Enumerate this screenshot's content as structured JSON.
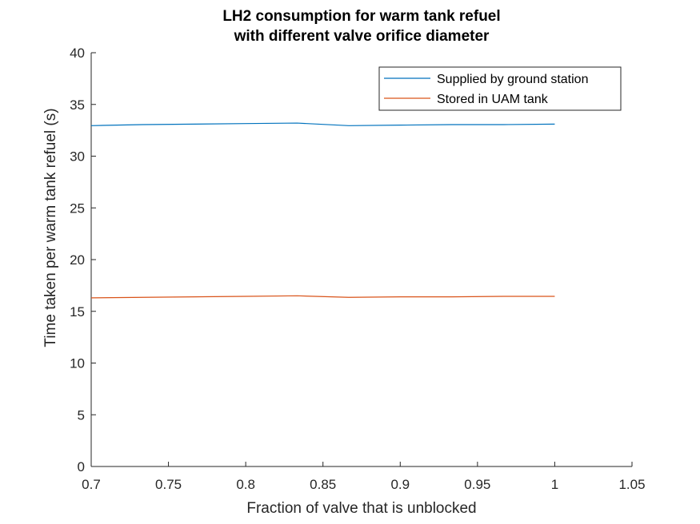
{
  "chart_data": {
    "type": "line",
    "title": [
      "LH2 consumption for warm tank refuel",
      "with different valve orifice diameter"
    ],
    "xlabel": "Fraction of valve that is unblocked",
    "ylabel": "Time taken per warm tank refuel (s)",
    "xlim": [
      0.7,
      1.05
    ],
    "ylim": [
      0,
      40
    ],
    "xticks": [
      "0.7",
      "0.75",
      "0.8",
      "0.85",
      "0.9",
      "0.95",
      "1",
      "1.05"
    ],
    "yticks": [
      "0",
      "5",
      "10",
      "15",
      "20",
      "25",
      "30",
      "35",
      "40"
    ],
    "grid": false,
    "legend_position": "top-right",
    "series": [
      {
        "name": "Supplied by ground station",
        "color": "#0072BD",
        "x": [
          0.7,
          0.7333,
          0.7667,
          0.8,
          0.8333,
          0.8667,
          0.9,
          0.9333,
          0.9667,
          1.0
        ],
        "y": [
          32.95,
          33.05,
          33.1,
          33.15,
          33.2,
          32.95,
          33.0,
          33.05,
          33.05,
          33.1
        ]
      },
      {
        "name": "Stored in UAM tank",
        "color": "#D95319",
        "x": [
          0.7,
          0.7333,
          0.7667,
          0.8,
          0.8333,
          0.8667,
          0.9,
          0.9333,
          0.9667,
          1.0
        ],
        "y": [
          16.3,
          16.35,
          16.4,
          16.45,
          16.5,
          16.35,
          16.4,
          16.4,
          16.45,
          16.45
        ]
      }
    ]
  }
}
